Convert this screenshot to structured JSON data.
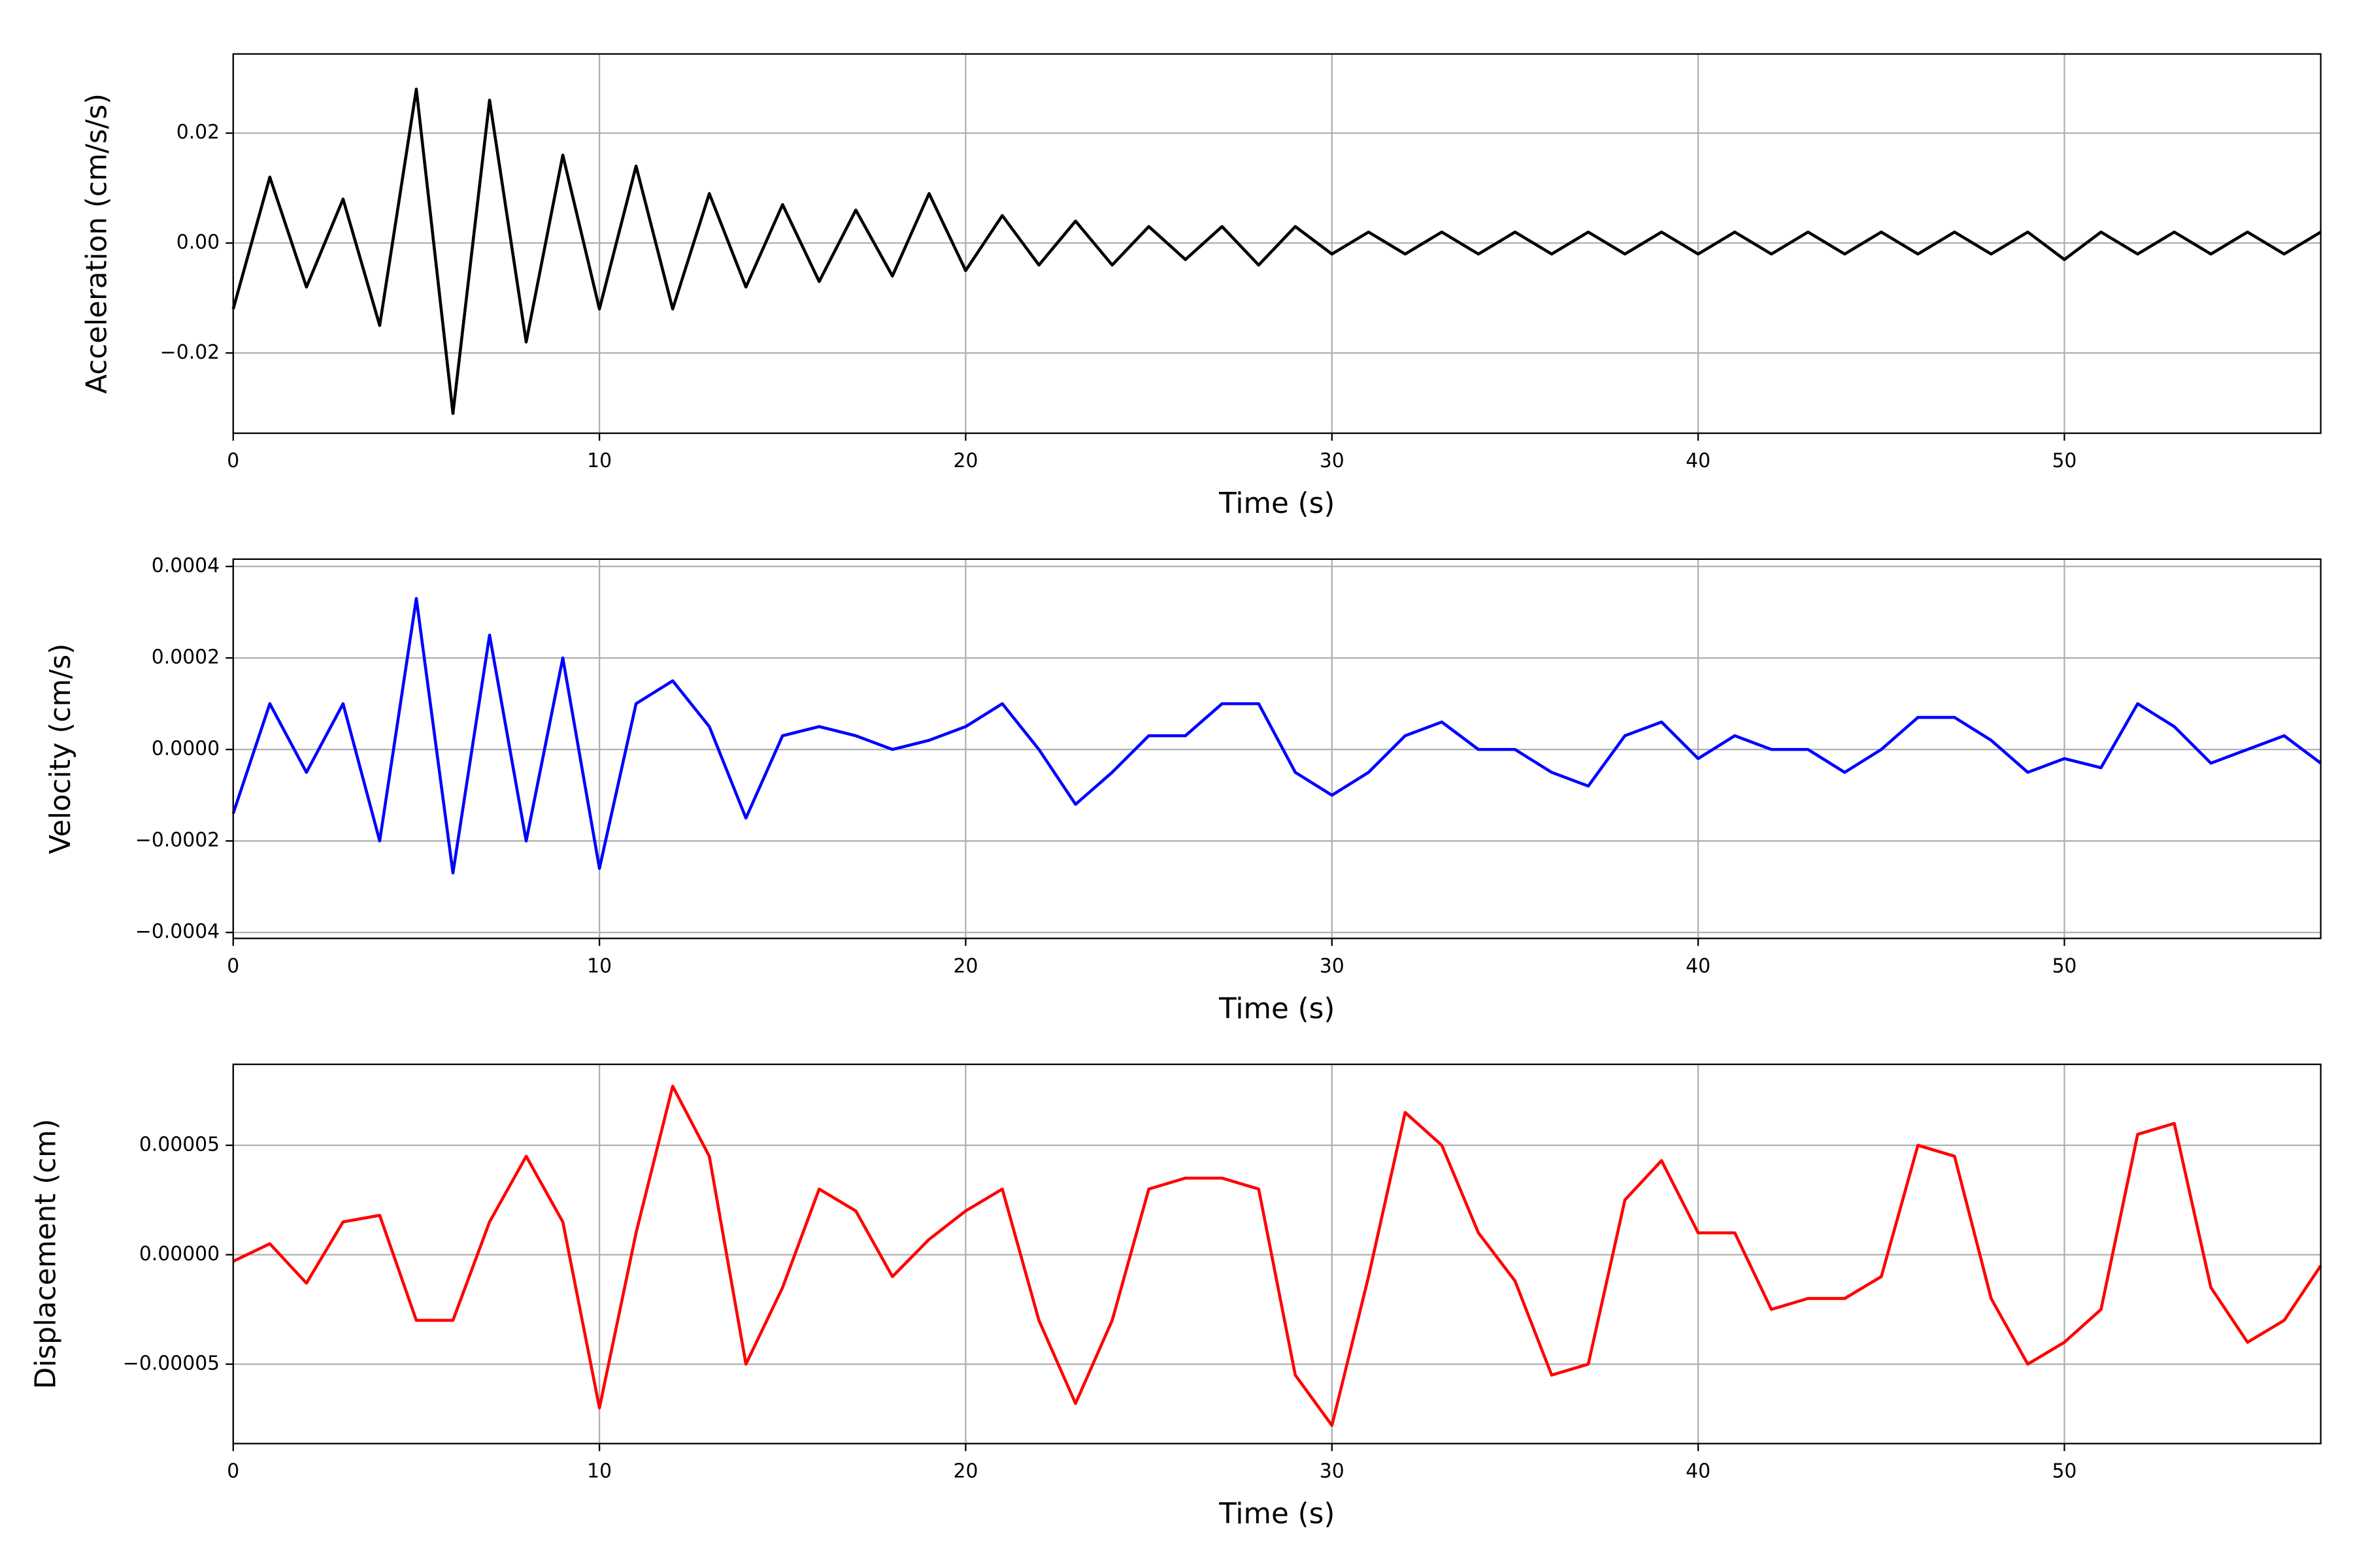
{
  "chart_data": [
    {
      "type": "line",
      "xlabel": "Time (s)",
      "ylabel": "Acceleration (cm/s/s)",
      "color": "#000000",
      "grid": true,
      "xlim": [
        0,
        57
      ],
      "xticks": [
        0,
        10,
        20,
        30,
        40,
        50
      ],
      "ylim": [
        -0.0346,
        0.0344
      ],
      "yticks": [
        {
          "value": -0.02,
          "label": "−0.02"
        },
        {
          "value": 0,
          "label": "0.00"
        },
        {
          "value": 0.02,
          "label": "0.02"
        }
      ],
      "x": [
        0,
        1,
        2,
        3,
        4,
        5,
        6,
        7,
        8,
        9,
        10,
        11,
        12,
        13,
        14,
        15,
        16,
        17,
        18,
        19,
        20,
        21,
        22,
        23,
        24,
        25,
        26,
        27,
        28,
        29,
        30,
        31,
        32,
        33,
        34,
        35,
        36,
        37,
        38,
        39,
        40,
        41,
        42,
        43,
        44,
        45,
        46,
        47,
        48,
        49,
        50,
        51,
        52,
        53,
        54,
        55,
        56,
        57
      ],
      "values": [
        -0.012,
        0.012,
        -0.008,
        0.008,
        -0.015,
        0.028,
        -0.031,
        0.026,
        -0.018,
        0.016,
        -0.012,
        0.014,
        -0.012,
        0.009,
        -0.008,
        0.007,
        -0.007,
        0.006,
        -0.006,
        0.009,
        -0.005,
        0.005,
        -0.004,
        0.004,
        -0.004,
        0.003,
        -0.003,
        0.003,
        -0.004,
        0.003,
        -0.002,
        0.002,
        -0.002,
        0.002,
        -0.002,
        0.002,
        -0.002,
        0.002,
        -0.002,
        0.002,
        -0.002,
        0.002,
        -0.002,
        0.002,
        -0.002,
        0.002,
        -0.002,
        0.002,
        -0.002,
        0.002,
        -0.003,
        0.002,
        -0.002,
        0.002,
        -0.002,
        0.002,
        -0.002,
        0.002
      ]
    },
    {
      "type": "line",
      "xlabel": "Time (s)",
      "ylabel": "Velocity (cm/s)",
      "color": "#0000ff",
      "grid": true,
      "xlim": [
        0,
        57
      ],
      "xticks": [
        0,
        10,
        20,
        30,
        40,
        50
      ],
      "ylim": [
        -0.000413,
        0.000416
      ],
      "yticks": [
        {
          "value": -0.0004,
          "label": "−0.0004"
        },
        {
          "value": -0.0002,
          "label": "−0.0002"
        },
        {
          "value": 0,
          "label": "0.0000"
        },
        {
          "value": 0.0002,
          "label": "0.0002"
        },
        {
          "value": 0.0004,
          "label": "0.0004"
        }
      ],
      "x": [
        0,
        1,
        2,
        3,
        4,
        5,
        6,
        7,
        8,
        9,
        10,
        11,
        12,
        13,
        14,
        15,
        16,
        17,
        18,
        19,
        20,
        21,
        22,
        23,
        24,
        25,
        26,
        27,
        28,
        29,
        30,
        31,
        32,
        33,
        34,
        35,
        36,
        37,
        38,
        39,
        40,
        41,
        42,
        43,
        44,
        45,
        46,
        47,
        48,
        49,
        50,
        51,
        52,
        53,
        54,
        55,
        56,
        57
      ],
      "values": [
        -0.00014,
        0.0001,
        -5e-05,
        0.0001,
        -0.0002,
        0.00033,
        -0.00027,
        0.00025,
        -0.0002,
        0.0002,
        -0.00026,
        0.0001,
        0.00015,
        5e-05,
        -0.00015,
        3e-05,
        5e-05,
        3e-05,
        0,
        2e-05,
        5e-05,
        0.0001,
        0,
        -0.00012,
        -5e-05,
        3e-05,
        3e-05,
        0.0001,
        0.0001,
        -5e-05,
        -0.0001,
        -5e-05,
        3e-05,
        6e-05,
        0,
        0,
        -5e-05,
        -8e-05,
        3e-05,
        6e-05,
        -2e-05,
        3e-05,
        0,
        0,
        -5e-05,
        0,
        7e-05,
        7e-05,
        2e-05,
        -5e-05,
        -2e-05,
        -4e-05,
        0.0001,
        5e-05,
        -3e-05,
        0,
        3e-05,
        -3e-05
      ]
    },
    {
      "type": "line",
      "xlabel": "Time (s)",
      "ylabel": "Displacement (cm)",
      "color": "#ff0000",
      "grid": true,
      "xlim": [
        0,
        57
      ],
      "xticks": [
        0,
        10,
        20,
        30,
        40,
        50
      ],
      "ylim": [
        -8.63e-05,
        8.7e-05
      ],
      "yticks": [
        {
          "value": -5e-05,
          "label": "−0.00005"
        },
        {
          "value": 0,
          "label": "0.00000"
        },
        {
          "value": 5e-05,
          "label": "0.00005"
        }
      ],
      "x": [
        0,
        1,
        2,
        3,
        4,
        5,
        6,
        7,
        8,
        9,
        10,
        11,
        12,
        13,
        14,
        15,
        16,
        17,
        18,
        19,
        20,
        21,
        22,
        23,
        24,
        25,
        26,
        27,
        28,
        29,
        30,
        31,
        32,
        33,
        34,
        35,
        36,
        37,
        38,
        39,
        40,
        41,
        42,
        43,
        44,
        45,
        46,
        47,
        48,
        49,
        50,
        51,
        52,
        53,
        54,
        55,
        56,
        57
      ],
      "values": [
        -3e-06,
        5e-06,
        -1.3e-05,
        1.5e-05,
        1.8e-05,
        -3e-05,
        -3e-05,
        1.5e-05,
        4.5e-05,
        1.5e-05,
        -7e-05,
        1e-05,
        7.7e-05,
        4.5e-05,
        -5e-05,
        -1.5e-05,
        3e-05,
        2e-05,
        -1e-05,
        7e-06,
        2e-05,
        3e-05,
        -3e-05,
        -6.8e-05,
        -3e-05,
        3e-05,
        3.5e-05,
        3.5e-05,
        3e-05,
        -5.5e-05,
        -7.8e-05,
        -1e-05,
        6.5e-05,
        5e-05,
        1e-05,
        -1.2e-05,
        -5.5e-05,
        -5e-05,
        2.5e-05,
        4.3e-05,
        1e-05,
        1e-05,
        -2.5e-05,
        -2e-05,
        -2e-05,
        -1e-05,
        5e-05,
        4.5e-05,
        -2e-05,
        -5e-05,
        -4e-05,
        -2.5e-05,
        5.5e-05,
        6e-05,
        -1.5e-05,
        -4e-05,
        -3e-05,
        -5e-06
      ]
    }
  ]
}
